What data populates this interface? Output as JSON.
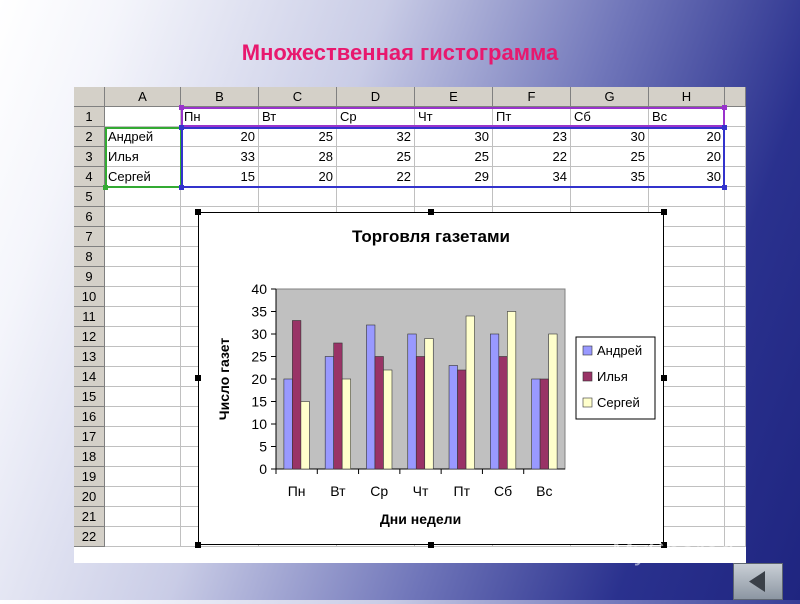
{
  "slide": {
    "title": "Множественная гистограмма",
    "watermark": "MyShared"
  },
  "sheet": {
    "columns": [
      "A",
      "B",
      "C",
      "D",
      "E",
      "F",
      "G",
      "H"
    ],
    "rows": [
      "1",
      "2",
      "3",
      "4",
      "5",
      "6",
      "7",
      "8",
      "9",
      "10",
      "11",
      "12",
      "13",
      "14",
      "15",
      "16",
      "17",
      "18",
      "19",
      "20",
      "21",
      "22"
    ],
    "header_row": [
      "",
      "Пн",
      "Вт",
      "Ср",
      "Чт",
      "Пт",
      "Сб",
      "Вс"
    ],
    "data_rows": [
      {
        "name": "Андрей",
        "values": [
          "20",
          "25",
          "32",
          "30",
          "23",
          "30",
          "20"
        ]
      },
      {
        "name": "Илья",
        "values": [
          "33",
          "28",
          "25",
          "25",
          "22",
          "25",
          "20"
        ]
      },
      {
        "name": "Сергей",
        "values": [
          "15",
          "20",
          "22",
          "29",
          "34",
          "35",
          "30"
        ]
      }
    ]
  },
  "chart_data": {
    "type": "bar",
    "title": "Торговля газетами",
    "xlabel": "Дни недели",
    "ylabel": "Число газет",
    "categories": [
      "Пн",
      "Вт",
      "Ср",
      "Чт",
      "Пт",
      "Сб",
      "Вс"
    ],
    "yticks": [
      "0",
      "5",
      "10",
      "15",
      "20",
      "25",
      "30",
      "35",
      "40"
    ],
    "ylim": [
      0,
      40
    ],
    "grid": false,
    "legend": "right",
    "series": [
      {
        "name": "Андрей",
        "values": [
          20,
          25,
          32,
          30,
          23,
          30,
          20
        ],
        "color": "#9999ff"
      },
      {
        "name": "Илья",
        "values": [
          33,
          28,
          25,
          25,
          22,
          25,
          20
        ],
        "color": "#993366"
      },
      {
        "name": "Сергей",
        "values": [
          15,
          20,
          22,
          29,
          34,
          35,
          30
        ],
        "color": "#ffffcc"
      }
    ],
    "plot_background": "#c0c0c0"
  },
  "colors": {
    "title": "#e8186e",
    "selection_purple": "#9933cc",
    "selection_green": "#33aa33",
    "selection_blue": "#3333cc"
  },
  "icons": {
    "nav_button": "back-arrow-icon"
  }
}
